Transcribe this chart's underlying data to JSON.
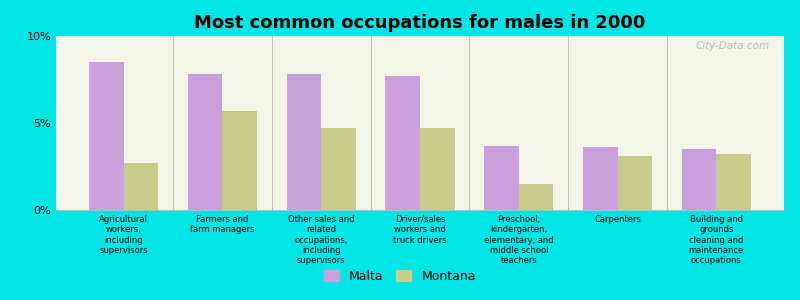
{
  "title": "Most common occupations for males in 2000",
  "categories": [
    "Agricultural\nworkers,\nincluding\nsupervisors",
    "Farmers and\nfarm managers",
    "Other sales and\nrelated\noccupations,\nincluding\nsupervisors",
    "Driver/sales\nworkers and\ntruck drivers",
    "Preschool,\nkindergarten,\nelementary, and\nmiddle school\nteachers",
    "Carpenters",
    "Building and\ngrounds\ncleaning and\nmaintenance\noccupations"
  ],
  "malta_values": [
    8.5,
    7.8,
    7.8,
    7.7,
    3.7,
    3.6,
    3.5
  ],
  "montana_values": [
    2.7,
    5.7,
    4.7,
    4.7,
    1.5,
    3.1,
    3.2
  ],
  "malta_color": "#c9a0dc",
  "montana_color": "#c8cc8a",
  "background_color": "#00e5e5",
  "plot_bg": "#f2f5e8",
  "ylim": [
    0,
    10
  ],
  "yticks": [
    0,
    5,
    10
  ],
  "ytick_labels": [
    "0%",
    "5%",
    "10%"
  ],
  "legend_labels": [
    "Malta",
    "Montana"
  ],
  "title_fontsize": 13,
  "bar_width": 0.35,
  "watermark": "City-Data.com"
}
